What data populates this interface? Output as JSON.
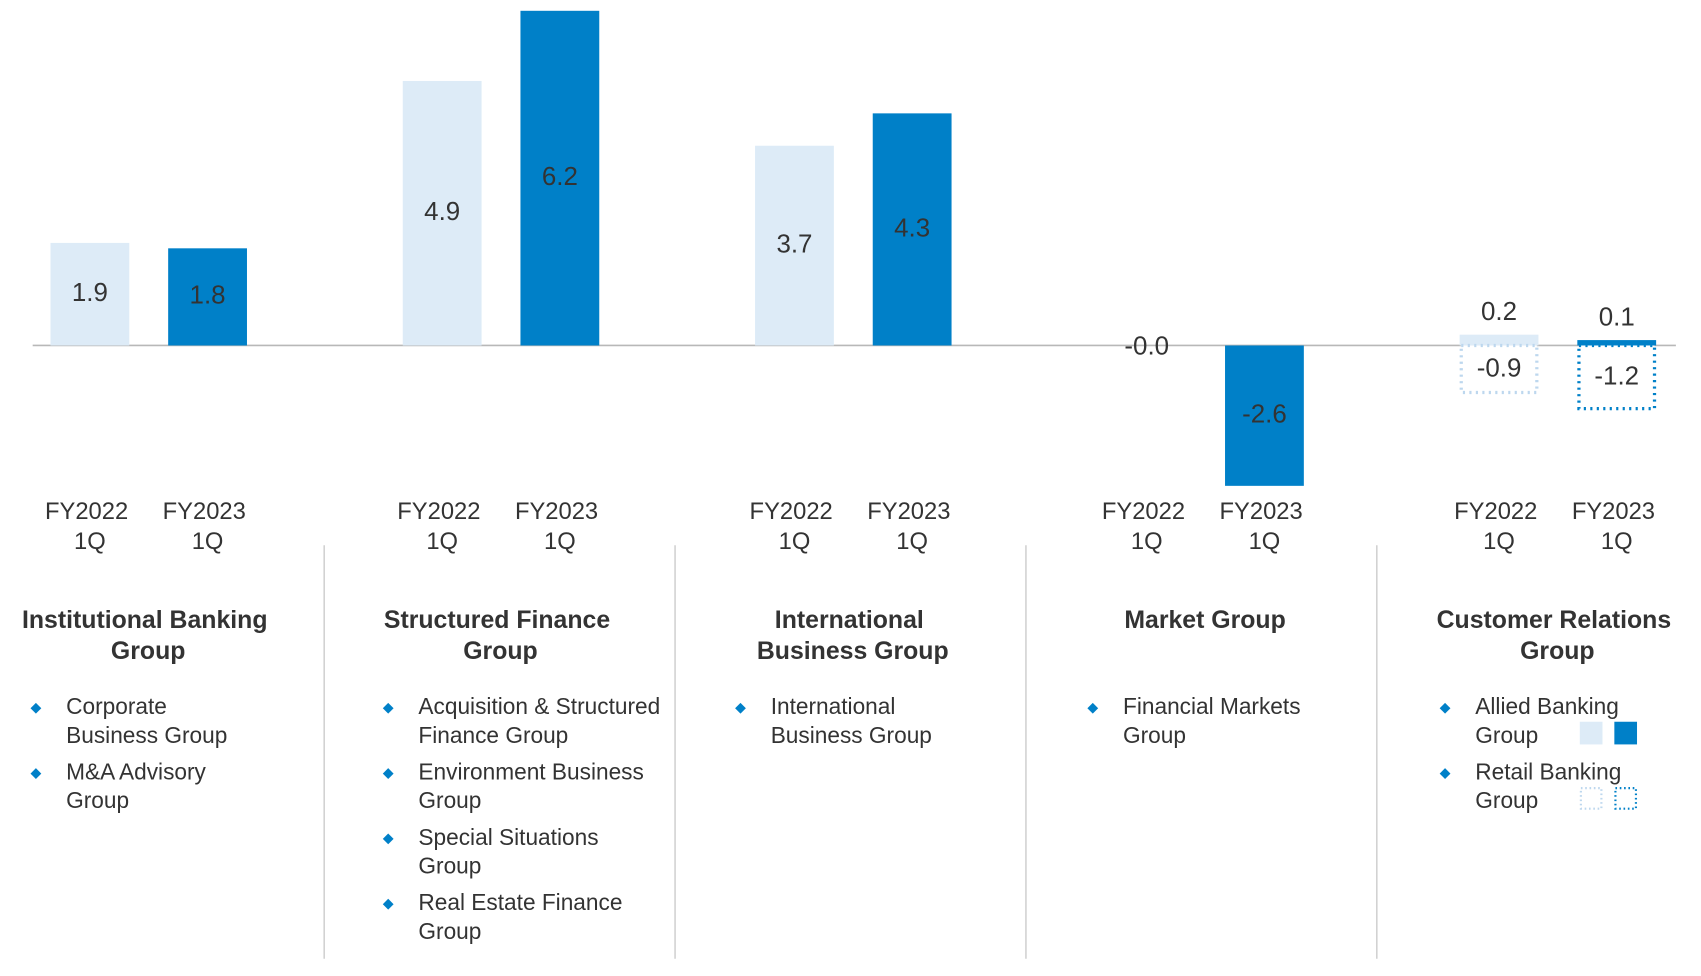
{
  "chart_data": {
    "type": "bar",
    "groups": [
      {
        "name": "Institutional Banking Group",
        "items": [
          "Corporate Business Group",
          "M&A Advisory Group"
        ]
      },
      {
        "name": "Structured Finance Group",
        "items": [
          "Acquisition & Structured Finance Group",
          "Environment Business Group",
          "Special Situations Group",
          "Real Estate Finance Group"
        ]
      },
      {
        "name": "International Business Group",
        "items": [
          "International Business Group"
        ]
      },
      {
        "name": "Market Group",
        "items": [
          "Financial Markets Group"
        ]
      },
      {
        "name": "Customer Relations Group",
        "items": [
          "Allied Banking Group",
          "Retail Banking Group"
        ]
      }
    ],
    "series": [
      {
        "name": "FY2022 1Q",
        "color": "#ddebf7",
        "values": [
          1.9,
          4.9,
          3.7,
          -0.0,
          0.2
        ],
        "value_labels": [
          "1.9",
          "4.9",
          "3.7",
          "-0.0",
          "0.2"
        ]
      },
      {
        "name": "FY2023 1Q",
        "color": "#0080c8",
        "values": [
          1.8,
          6.2,
          4.3,
          -2.6,
          0.1
        ]
      },
      {
        "name": "FY2022 1Q",
        "color": "#bdd7ee",
        "style": "dotted",
        "values": [
          null,
          null,
          null,
          null,
          -0.9
        ]
      },
      {
        "name": "FY2023 1Q",
        "color": "#0080c8",
        "style": "dotted",
        "values": [
          null,
          null,
          null,
          null,
          -1.2
        ]
      }
    ],
    "ylim": [
      -2.8,
      6.4
    ]
  }
}
